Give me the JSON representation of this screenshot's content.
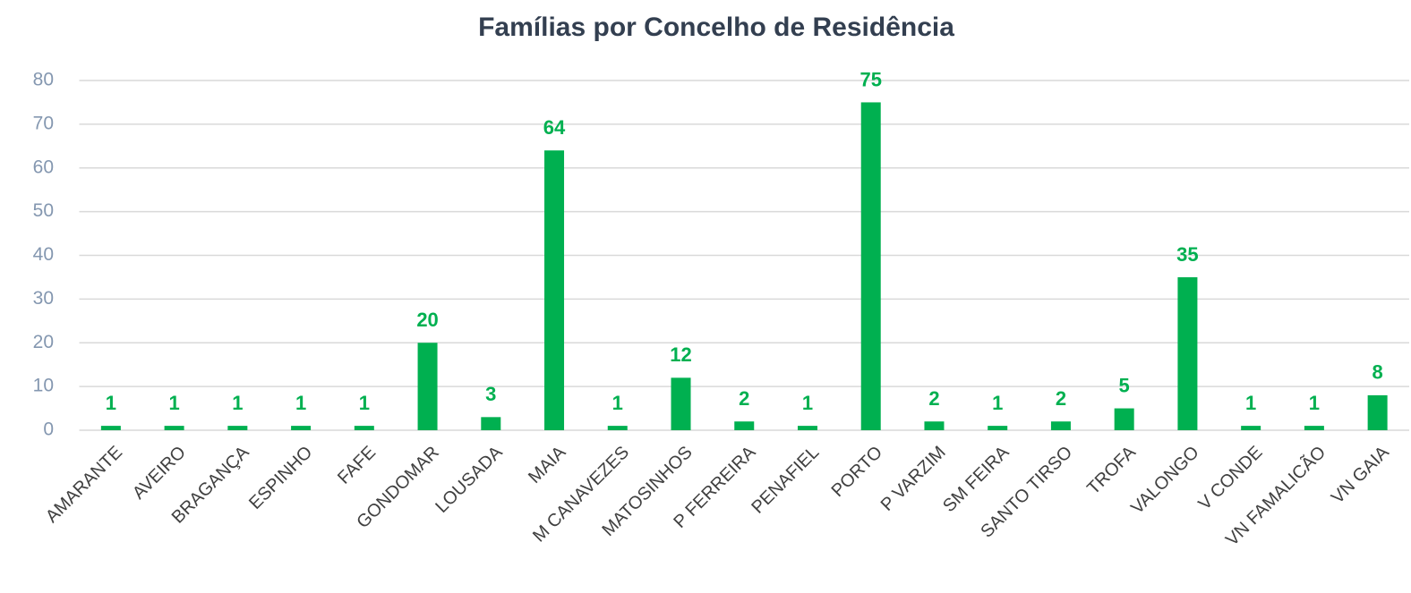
{
  "chart_data": {
    "type": "bar",
    "title": "Famílias por Concelho de Residência",
    "categories": [
      "AMARANTE",
      "AVEIRO",
      "BRAGANÇA",
      "ESPINHO",
      "FAFE",
      "GONDOMAR",
      "LOUSADA",
      "MAIA",
      "M CANAVEZES",
      "MATOSINHOS",
      "P FERREIRA",
      "PENAFIEL",
      "PORTO",
      "P VARZIM",
      "SM FEIRA",
      "SANTO TIRSO",
      "TROFA",
      "VALONGO",
      "V CONDE",
      "VN FAMALICÃO",
      "VN GAIA"
    ],
    "values": [
      1,
      1,
      1,
      1,
      1,
      20,
      3,
      64,
      1,
      12,
      2,
      1,
      75,
      2,
      1,
      2,
      5,
      35,
      1,
      1,
      8
    ],
    "color": "#00b050",
    "ylim": [
      0,
      80
    ],
    "yticks": [
      0,
      10,
      20,
      30,
      40,
      50,
      60,
      70,
      80
    ],
    "grid": true
  }
}
